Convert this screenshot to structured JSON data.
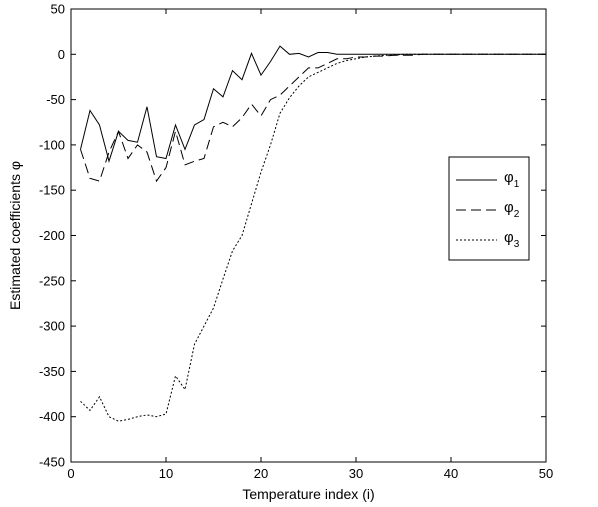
{
  "chart_data": {
    "type": "line",
    "title": "",
    "xlabel": "Temperature index (i)",
    "ylabel": "Estimated coefficients φ",
    "xlim": [
      0,
      50
    ],
    "ylim": [
      -450,
      50
    ],
    "xticks": [
      0,
      10,
      20,
      30,
      40,
      50
    ],
    "yticks": [
      -450,
      -400,
      -350,
      -300,
      -250,
      -200,
      -150,
      -100,
      -50,
      0,
      50
    ],
    "grid": false,
    "legend": "right",
    "x": [
      1,
      2,
      3,
      4,
      5,
      6,
      7,
      8,
      9,
      10,
      11,
      12,
      13,
      14,
      15,
      16,
      17,
      18,
      19,
      20,
      21,
      22,
      23,
      24,
      25,
      26,
      27,
      28,
      29,
      30,
      31,
      32,
      33,
      34,
      35,
      36,
      37,
      38,
      39,
      40,
      41,
      42,
      43,
      44,
      45,
      46,
      47,
      48,
      49,
      50
    ],
    "series": [
      {
        "name": "φ",
        "subscript": "1",
        "style": "solid",
        "color": "#000000",
        "values": [
          -105,
          -62,
          -78,
          -118,
          -85,
          -95,
          -97,
          -58,
          -113,
          -115,
          -78,
          -105,
          -78,
          -72,
          -38,
          -47,
          -18,
          -28,
          1,
          -23,
          -8,
          9,
          0,
          1,
          -3,
          2,
          2,
          0,
          0,
          0,
          0,
          0,
          0,
          0,
          0,
          0,
          0,
          0,
          0,
          0,
          0,
          0,
          0,
          0,
          0,
          0,
          0,
          0,
          0,
          0
        ]
      },
      {
        "name": "φ",
        "subscript": "2",
        "style": "dashed",
        "color": "#000000",
        "values": [
          -105,
          -137,
          -140,
          -108,
          -85,
          -115,
          -100,
          -108,
          -140,
          -125,
          -85,
          -122,
          -118,
          -115,
          -80,
          -75,
          -80,
          -70,
          -55,
          -68,
          -50,
          -45,
          -35,
          -25,
          -15,
          -15,
          -10,
          -5,
          -5,
          -3,
          -3,
          -2,
          -2,
          -1,
          -1,
          -1,
          0,
          0,
          0,
          0,
          0,
          0,
          0,
          0,
          0,
          0,
          0,
          0,
          0,
          0
        ]
      },
      {
        "name": "φ",
        "subscript": "3",
        "style": "dotted",
        "color": "#000000",
        "values": [
          -383,
          -393,
          -378,
          -400,
          -405,
          -403,
          -400,
          -398,
          -400,
          -397,
          -355,
          -370,
          -320,
          -300,
          -280,
          -248,
          -217,
          -200,
          -165,
          -130,
          -100,
          -65,
          -48,
          -35,
          -25,
          -20,
          -15,
          -10,
          -7,
          -5,
          -3,
          -2,
          -1,
          -1,
          0,
          0,
          0,
          0,
          0,
          0,
          0,
          0,
          0,
          0,
          0,
          0,
          0,
          0,
          0,
          0
        ]
      }
    ]
  }
}
